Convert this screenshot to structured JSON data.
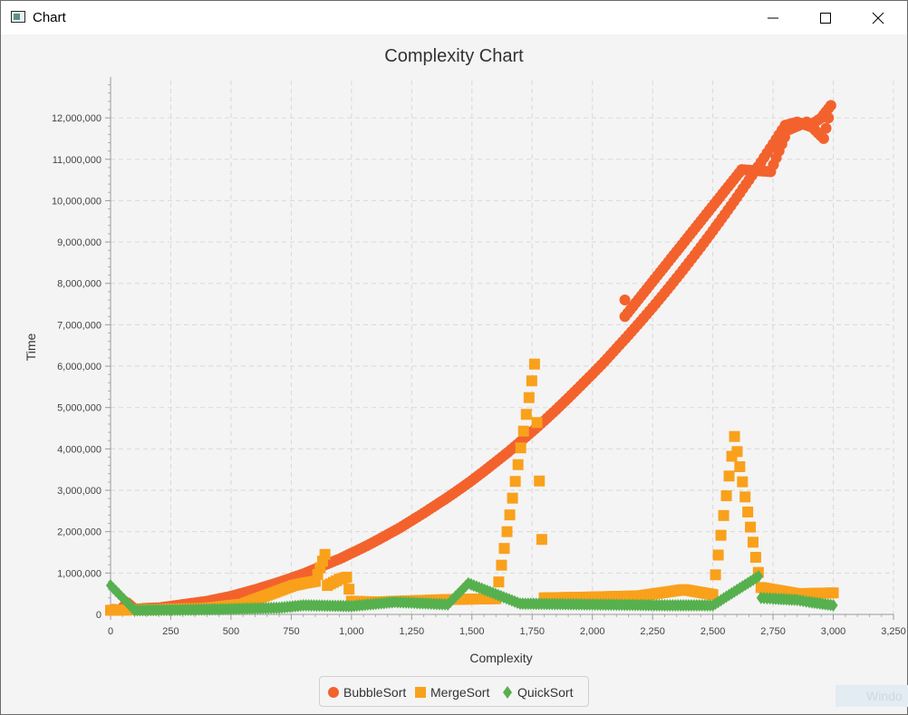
{
  "window": {
    "title": "Chart",
    "minimize_icon": "minimize-icon",
    "maximize_icon": "maximize-icon",
    "close_icon": "close-icon"
  },
  "watermark": "Windo",
  "chart_data": {
    "type": "scatter",
    "title": "Complexity Chart",
    "xlabel": "Complexity",
    "ylabel": "Time",
    "xlim": [
      0,
      3250
    ],
    "ylim": [
      0,
      12900000
    ],
    "x_ticks": [
      "0",
      "250",
      "500",
      "750",
      "1,000",
      "1,250",
      "1,500",
      "1,750",
      "2,000",
      "2,250",
      "2,500",
      "2,750",
      "3,000",
      "3,250"
    ],
    "y_ticks": [
      "0",
      "1,000,000",
      "2,000,000",
      "3,000,000",
      "4,000,000",
      "5,000,000",
      "6,000,000",
      "7,000,000",
      "8,000,000",
      "9,000,000",
      "10,000,000",
      "11,000,000",
      "12,000,000"
    ],
    "grid": true,
    "legend_position": "bottom",
    "series": [
      {
        "name": "BubbleSort",
        "color": "#f3622d",
        "marker": "circle",
        "points": [
          [
            10,
            120000
          ],
          [
            40,
            110000
          ],
          [
            70,
            280000
          ],
          [
            100,
            130000
          ],
          [
            150,
            150000
          ],
          [
            200,
            160000
          ],
          [
            250,
            200000
          ],
          [
            300,
            240000
          ],
          [
            350,
            280000
          ],
          [
            400,
            320000
          ],
          [
            450,
            380000
          ],
          [
            500,
            440000
          ],
          [
            550,
            520000
          ],
          [
            600,
            600000
          ],
          [
            650,
            690000
          ],
          [
            700,
            780000
          ],
          [
            750,
            880000
          ],
          [
            800,
            980000
          ],
          [
            850,
            1100000
          ],
          [
            900,
            1220000
          ],
          [
            950,
            1340000
          ],
          [
            1000,
            1480000
          ],
          [
            1050,
            1620000
          ],
          [
            1100,
            1770000
          ],
          [
            1150,
            1930000
          ],
          [
            1200,
            2090000
          ],
          [
            1250,
            2270000
          ],
          [
            1300,
            2450000
          ],
          [
            1350,
            2640000
          ],
          [
            1400,
            2830000
          ],
          [
            1450,
            3030000
          ],
          [
            1500,
            3240000
          ],
          [
            1550,
            3460000
          ],
          [
            1600,
            3690000
          ],
          [
            1650,
            3920000
          ],
          [
            1700,
            4170000
          ],
          [
            1750,
            4420000
          ],
          [
            1800,
            4680000
          ],
          [
            1850,
            4950000
          ],
          [
            1900,
            5230000
          ],
          [
            1950,
            5520000
          ],
          [
            2000,
            5810000
          ],
          [
            2050,
            6110000
          ],
          [
            2100,
            6430000
          ],
          [
            2150,
            6750000
          ],
          [
            2200,
            7080000
          ],
          [
            2250,
            7420000
          ],
          [
            2300,
            7770000
          ],
          [
            2350,
            8130000
          ],
          [
            2400,
            8500000
          ],
          [
            2450,
            8880000
          ],
          [
            2500,
            9270000
          ],
          [
            2550,
            9670000
          ],
          [
            2600,
            10080000
          ],
          [
            2650,
            10500000
          ],
          [
            2700,
            10930000
          ],
          [
            2750,
            11370000
          ],
          [
            2800,
            11820000
          ],
          [
            2850,
            11900000
          ],
          [
            2900,
            11800000
          ],
          [
            2950,
            12000000
          ],
          [
            2990,
            12300000
          ],
          [
            2135,
            7600000
          ],
          [
            2135,
            7200000
          ],
          [
            2620,
            10750000
          ],
          [
            2740,
            10700000
          ],
          [
            2810,
            11700000
          ],
          [
            2890,
            11900000
          ],
          [
            2960,
            11500000
          ],
          [
            2980,
            12000000
          ]
        ]
      },
      {
        "name": "MergeSort",
        "color": "#f9a11b",
        "marker": "square",
        "points": [
          [
            0,
            100000
          ],
          [
            200,
            120000
          ],
          [
            400,
            150000
          ],
          [
            550,
            250000
          ],
          [
            760,
            700000
          ],
          [
            800,
            750000
          ],
          [
            850,
            800000
          ],
          [
            890,
            1450000
          ],
          [
            900,
            700000
          ],
          [
            950,
            850000
          ],
          [
            980,
            900000
          ],
          [
            1000,
            320000
          ],
          [
            1100,
            300000
          ],
          [
            1250,
            330000
          ],
          [
            1400,
            360000
          ],
          [
            1500,
            370000
          ],
          [
            1600,
            380000
          ],
          [
            1760,
            6050000
          ],
          [
            1800,
            400000
          ],
          [
            2000,
            420000
          ],
          [
            2200,
            450000
          ],
          [
            2380,
            600000
          ],
          [
            2500,
            480000
          ],
          [
            2590,
            4300000
          ],
          [
            2700,
            650000
          ],
          [
            2850,
            500000
          ],
          [
            3000,
            520000
          ]
        ]
      },
      {
        "name": "QuickSort",
        "color": "#56b04e",
        "marker": "diamond",
        "points": [
          [
            0,
            700000
          ],
          [
            100,
            100000
          ],
          [
            300,
            110000
          ],
          [
            500,
            130000
          ],
          [
            700,
            160000
          ],
          [
            800,
            220000
          ],
          [
            1000,
            200000
          ],
          [
            1180,
            300000
          ],
          [
            1400,
            240000
          ],
          [
            1485,
            750000
          ],
          [
            1700,
            260000
          ],
          [
            2000,
            240000
          ],
          [
            2300,
            220000
          ],
          [
            2500,
            220000
          ],
          [
            2690,
            920000
          ],
          [
            2700,
            400000
          ],
          [
            2750,
            380000
          ],
          [
            2850,
            350000
          ],
          [
            2900,
            300000
          ],
          [
            3000,
            220000
          ]
        ]
      }
    ]
  }
}
